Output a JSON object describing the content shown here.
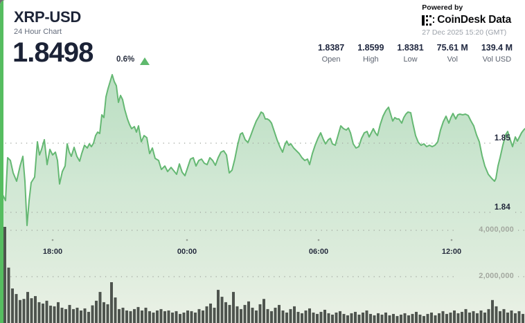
{
  "card": {
    "symbol": "XRP-USD",
    "subtitle": "24 Hour Chart",
    "price": "1.8498",
    "change_pct": "0.6%",
    "change_direction": "up",
    "powered_by": "Powered by",
    "brand": {
      "name_1": "CoinDesk",
      "name_2": "Data"
    },
    "timestamp": "27 Dec 2025 15:20 (GMT)",
    "stats": [
      {
        "value": "1.8387",
        "label": "Open"
      },
      {
        "value": "1.8599",
        "label": "High"
      },
      {
        "value": "1.8381",
        "label": "Low"
      },
      {
        "value": "75.61 M",
        "label": "Vol"
      },
      {
        "value": "139.4 M",
        "label": "Vol USD"
      }
    ],
    "colors": {
      "accent_green": "#56bd60",
      "line_green": "#65b873",
      "area_top": "#92cb9e",
      "area_bottom": "#ebf1e6",
      "volume_bar": "#4e544e",
      "grid_dot": "#a8aea6"
    }
  },
  "chart_data": {
    "type": "area",
    "title": "XRP-USD 24 Hour Chart",
    "legend": false,
    "grid": "dotted",
    "price_axis": {
      "side": "right",
      "ticks": [
        "1.85",
        "1.84"
      ],
      "tick_values": [
        1.85,
        1.84
      ]
    },
    "volume_axis": {
      "side": "right",
      "ticks": [
        "4,000,000",
        "2,000,000"
      ],
      "tick_values": [
        4000000,
        2000000
      ]
    },
    "time_axis": {
      "ticks": [
        "18:00",
        "00:00",
        "06:00",
        "12:00"
      ]
    },
    "summary": {
      "open": 1.8387,
      "high": 1.8599,
      "low": 1.8381,
      "volume": "75.61 M",
      "volume_usd": "139.4 M"
    },
    "price_series": {
      "name": "XRP-USD price",
      "points": [
        [
          4,
          1.8425
        ],
        [
          8,
          1.8417
        ],
        [
          11,
          1.8479
        ],
        [
          15,
          1.8475
        ],
        [
          19,
          1.8457
        ],
        [
          24,
          1.8445
        ],
        [
          29,
          1.8467
        ],
        [
          33,
          1.8481
        ],
        [
          36,
          1.8445
        ],
        [
          39,
          1.8381
        ],
        [
          42,
          1.8417
        ],
        [
          45,
          1.8443
        ],
        [
          50,
          1.8451
        ],
        [
          54,
          1.8502
        ],
        [
          57,
          1.8483
        ],
        [
          60,
          1.8491
        ],
        [
          64,
          1.8505
        ],
        [
          68,
          1.8469
        ],
        [
          72,
          1.8491
        ],
        [
          76,
          1.8483
        ],
        [
          80,
          1.8487
        ],
        [
          83,
          1.8475
        ],
        [
          86,
          1.8441
        ],
        [
          90,
          1.8459
        ],
        [
          94,
          1.8467
        ],
        [
          97,
          1.8499
        ],
        [
          100,
          1.8487
        ],
        [
          103,
          1.8481
        ],
        [
          107,
          1.8494
        ],
        [
          111,
          1.8481
        ],
        [
          115,
          1.8474
        ],
        [
          118,
          1.8485
        ],
        [
          122,
          1.8497
        ],
        [
          126,
          1.8493
        ],
        [
          129,
          1.8499
        ],
        [
          132,
          1.8495
        ],
        [
          135,
          1.85
        ],
        [
          138,
          1.8511
        ],
        [
          141,
          1.8516
        ],
        [
          144,
          1.8514
        ],
        [
          147,
          1.8541
        ],
        [
          150,
          1.8537
        ],
        [
          153,
          1.8567
        ],
        [
          156,
          1.8579
        ],
        [
          159,
          1.8589
        ],
        [
          162,
          1.8599
        ],
        [
          165,
          1.8589
        ],
        [
          168,
          1.8583
        ],
        [
          171,
          1.8559
        ],
        [
          174,
          1.8569
        ],
        [
          177,
          1.8563
        ],
        [
          180,
          1.8549
        ],
        [
          184,
          1.8535
        ],
        [
          187,
          1.8527
        ],
        [
          190,
          1.8521
        ],
        [
          194,
          1.8524
        ],
        [
          197,
          1.8516
        ],
        [
          200,
          1.8525
        ],
        [
          204,
          1.8502
        ],
        [
          208,
          1.8511
        ],
        [
          212,
          1.8508
        ],
        [
          216,
          1.8485
        ],
        [
          220,
          1.8493
        ],
        [
          224,
          1.8478
        ],
        [
          229,
          1.8475
        ],
        [
          233,
          1.8462
        ],
        [
          238,
          1.8467
        ],
        [
          242,
          1.8459
        ],
        [
          247,
          1.8465
        ],
        [
          251,
          1.846
        ],
        [
          255,
          1.8455
        ],
        [
          259,
          1.847
        ],
        [
          263,
          1.8458
        ],
        [
          267,
          1.8453
        ],
        [
          271,
          1.8465
        ],
        [
          275,
          1.8477
        ],
        [
          279,
          1.8479
        ],
        [
          283,
          1.8467
        ],
        [
          287,
          1.8475
        ],
        [
          291,
          1.8477
        ],
        [
          295,
          1.8471
        ],
        [
          299,
          1.8469
        ],
        [
          303,
          1.8479
        ],
        [
          307,
          1.8475
        ],
        [
          311,
          1.8468
        ],
        [
          315,
          1.8479
        ],
        [
          319,
          1.8487
        ],
        [
          323,
          1.8489
        ],
        [
          327,
          1.8483
        ],
        [
          331,
          1.8457
        ],
        [
          335,
          1.8461
        ],
        [
          339,
          1.8477
        ],
        [
          343,
          1.8497
        ],
        [
          347,
          1.8513
        ],
        [
          350,
          1.8515
        ],
        [
          354,
          1.8505
        ],
        [
          358,
          1.8501
        ],
        [
          362,
          1.8511
        ],
        [
          366,
          1.8522
        ],
        [
          370,
          1.8532
        ],
        [
          374,
          1.8539
        ],
        [
          377,
          1.8545
        ],
        [
          380,
          1.8543
        ],
        [
          383,
          1.8535
        ],
        [
          386,
          1.8535
        ],
        [
          389,
          1.8533
        ],
        [
          392,
          1.8529
        ],
        [
          396,
          1.8517
        ],
        [
          400,
          1.8505
        ],
        [
          404,
          1.8495
        ],
        [
          408,
          1.8487
        ],
        [
          411,
          1.8497
        ],
        [
          414,
          1.8503
        ],
        [
          417,
          1.8497
        ],
        [
          420,
          1.8499
        ],
        [
          424,
          1.8493
        ],
        [
          428,
          1.8489
        ],
        [
          432,
          1.8485
        ],
        [
          436,
          1.8479
        ],
        [
          440,
          1.8475
        ],
        [
          444,
          1.8477
        ],
        [
          447,
          1.8469
        ],
        [
          451,
          1.8485
        ],
        [
          455,
          1.8497
        ],
        [
          459,
          1.8507
        ],
        [
          463,
          1.8515
        ],
        [
          467,
          1.8505
        ],
        [
          470,
          1.8499
        ],
        [
          474,
          1.8505
        ],
        [
          477,
          1.8507
        ],
        [
          480,
          1.8499
        ],
        [
          484,
          1.8497
        ],
        [
          488,
          1.8511
        ],
        [
          492,
          1.8525
        ],
        [
          496,
          1.8521
        ],
        [
          500,
          1.8519
        ],
        [
          503,
          1.8522
        ],
        [
          506,
          1.8515
        ],
        [
          510,
          1.8499
        ],
        [
          514,
          1.8493
        ],
        [
          518,
          1.8495
        ],
        [
          522,
          1.8507
        ],
        [
          526,
          1.8515
        ],
        [
          530,
          1.8517
        ],
        [
          533,
          1.8509
        ],
        [
          536,
          1.8515
        ],
        [
          539,
          1.8521
        ],
        [
          542,
          1.8515
        ],
        [
          545,
          1.8511
        ],
        [
          549,
          1.8527
        ],
        [
          553,
          1.8539
        ],
        [
          557,
          1.8547
        ],
        [
          561,
          1.8552
        ],
        [
          564,
          1.8542
        ],
        [
          567,
          1.8532
        ],
        [
          570,
          1.8537
        ],
        [
          573,
          1.8535
        ],
        [
          576,
          1.8535
        ],
        [
          580,
          1.8529
        ],
        [
          583,
          1.8537
        ],
        [
          586,
          1.8542
        ],
        [
          589,
          1.8545
        ],
        [
          593,
          1.8544
        ],
        [
          596,
          1.8529
        ],
        [
          600,
          1.8511
        ],
        [
          604,
          1.8501
        ],
        [
          608,
          1.8497
        ],
        [
          612,
          1.8499
        ],
        [
          616,
          1.8495
        ],
        [
          620,
          1.8497
        ],
        [
          624,
          1.8495
        ],
        [
          628,
          1.8497
        ],
        [
          632,
          1.8502
        ],
        [
          636,
          1.8519
        ],
        [
          640,
          1.8531
        ],
        [
          644,
          1.8539
        ],
        [
          648,
          1.8529
        ],
        [
          651,
          1.8537
        ],
        [
          654,
          1.8543
        ],
        [
          658,
          1.8535
        ],
        [
          661,
          1.8541
        ],
        [
          664,
          1.8542
        ],
        [
          668,
          1.8541
        ],
        [
          672,
          1.8542
        ],
        [
          676,
          1.854
        ],
        [
          680,
          1.8532
        ],
        [
          684,
          1.8525
        ],
        [
          688,
          1.8512
        ],
        [
          692,
          1.8502
        ],
        [
          696,
          1.8482
        ],
        [
          700,
          1.8467
        ],
        [
          705,
          1.8455
        ],
        [
          710,
          1.8449
        ],
        [
          714,
          1.8445
        ],
        [
          716,
          1.8449
        ],
        [
          719,
          1.8467
        ],
        [
          722,
          1.8479
        ],
        [
          726,
          1.8497
        ],
        [
          730,
          1.8512
        ],
        [
          733,
          1.8517
        ],
        [
          736,
          1.8507
        ],
        [
          740,
          1.8495
        ],
        [
          744,
          1.8509
        ],
        [
          747,
          1.8503
        ],
        [
          750,
          1.8509
        ],
        [
          753,
          1.8515
        ],
        [
          756,
          1.8519
        ],
        [
          758,
          1.8521
        ]
      ]
    },
    "volume_series": {
      "name": "Volume",
      "values": [
        4150000,
        2390000,
        1490000,
        1250000,
        990000,
        1040000,
        1340000,
        1070000,
        1160000,
        900000,
        840000,
        960000,
        750000,
        720000,
        900000,
        660000,
        600000,
        780000,
        600000,
        660000,
        540000,
        630000,
        480000,
        760000,
        960000,
        1340000,
        900000,
        810000,
        1760000,
        1100000,
        600000,
        660000,
        540000,
        510000,
        600000,
        690000,
        540000,
        660000,
        510000,
        450000,
        540000,
        600000,
        510000,
        540000,
        450000,
        510000,
        390000,
        450000,
        540000,
        510000,
        450000,
        600000,
        540000,
        720000,
        840000,
        660000,
        1430000,
        1130000,
        900000,
        780000,
        1340000,
        720000,
        600000,
        780000,
        930000,
        660000,
        540000,
        810000,
        1040000,
        600000,
        510000,
        660000,
        780000,
        540000,
        450000,
        600000,
        720000,
        480000,
        420000,
        540000,
        630000,
        450000,
        390000,
        480000,
        570000,
        420000,
        360000,
        450000,
        510000,
        390000,
        330000,
        420000,
        480000,
        360000,
        450000,
        540000,
        390000,
        330000,
        420000,
        360000,
        450000,
        330000,
        390000,
        300000,
        360000,
        420000,
        330000,
        390000,
        480000,
        360000,
        300000,
        390000,
        450000,
        330000,
        420000,
        510000,
        390000,
        450000,
        540000,
        420000,
        480000,
        600000,
        450000,
        510000,
        420000,
        540000,
        450000,
        600000,
        990000,
        720000,
        510000,
        600000,
        450000,
        540000,
        420000,
        510000,
        390000
      ]
    }
  }
}
